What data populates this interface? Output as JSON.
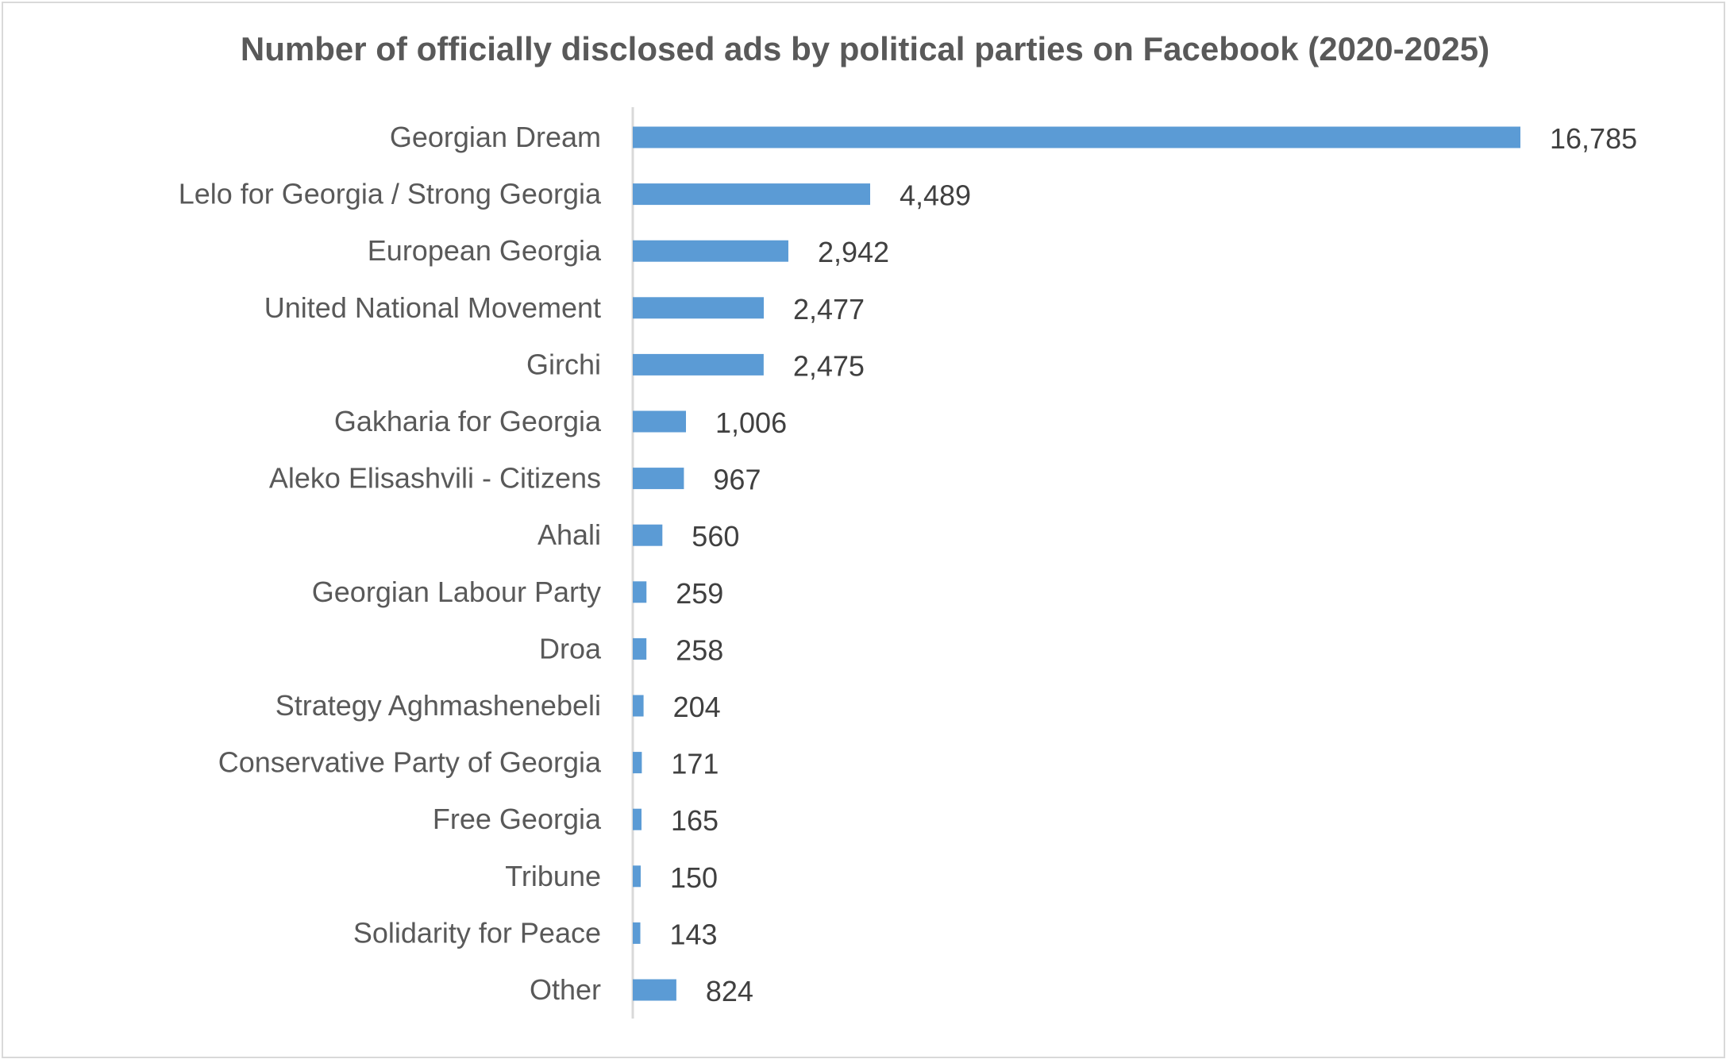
{
  "chart_data": {
    "type": "bar",
    "orientation": "horizontal",
    "title": "Number of officially disclosed ads by political parties on Facebook (2020-2025)",
    "xlabel": "",
    "ylabel": "",
    "xlim": [
      0,
      16785
    ],
    "grid": false,
    "legend": "none",
    "bar_color": "#5b9bd5",
    "categories": [
      "Georgian Dream",
      "Lelo for Georgia / Strong Georgia",
      "European Georgia",
      "United National Movement",
      "Girchi",
      "Gakharia for Georgia",
      "Aleko Elisashvili - Citizens",
      "Ahali",
      "Georgian Labour Party",
      "Droa",
      "Strategy Aghmashenebeli",
      "Conservative Party of Georgia",
      "Free Georgia",
      "Tribune",
      "Solidarity for Peace",
      "Other"
    ],
    "values": [
      16785,
      4489,
      2942,
      2477,
      2475,
      1006,
      967,
      560,
      259,
      258,
      204,
      171,
      165,
      150,
      143,
      824
    ],
    "value_labels": [
      "16,785",
      "4,489",
      "2,942",
      "2,477",
      "2,475",
      "1,006",
      "967",
      "560",
      "259",
      "258",
      "204",
      "171",
      "165",
      "150",
      "143",
      "824"
    ]
  }
}
